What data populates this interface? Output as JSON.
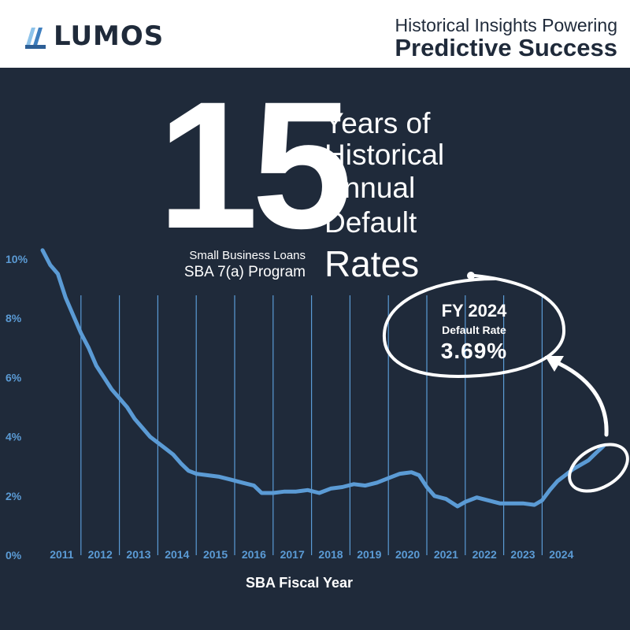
{
  "header": {
    "logo_text": "LUMOS",
    "tagline_line1": "Historical Insights Powering",
    "tagline_line2": "Predictive Success"
  },
  "headline": {
    "number": "15",
    "lines": [
      "Years of",
      "Historical",
      "Annual",
      "Default",
      "Rates"
    ],
    "subtitle_line1": "Small Business Loans",
    "subtitle_line2": "SBA 7(a) Program"
  },
  "callout": {
    "title": "FY 2024",
    "label": "Default Rate",
    "value": "3.69%"
  },
  "colors": {
    "background": "#1f2a3a",
    "header_bg": "#ffffff",
    "line": "#5b9bd5",
    "axis_text": "#5b9bd5",
    "white": "#ffffff"
  },
  "chart_data": {
    "type": "line",
    "title": "",
    "xlabel": "SBA Fiscal Year",
    "ylabel": "",
    "categories": [
      "2011",
      "2012",
      "2013",
      "2014",
      "2015",
      "2016",
      "2017",
      "2018",
      "2019",
      "2020",
      "2021",
      "2022",
      "2023",
      "2024"
    ],
    "y_ticks": [
      "0%",
      "2%",
      "4%",
      "6%",
      "8%",
      "10%"
    ],
    "ylim": [
      0,
      10.5
    ],
    "xlim": [
      2010.0,
      2025.0
    ],
    "grid": "vertical lines between fiscal years",
    "series": [
      {
        "name": "",
        "points": [
          [
            2010.0,
            10.3
          ],
          [
            2010.2,
            9.8
          ],
          [
            2010.4,
            9.5
          ],
          [
            2010.6,
            8.7
          ],
          [
            2010.8,
            8.1
          ],
          [
            2011.0,
            7.5
          ],
          [
            2011.2,
            7.0
          ],
          [
            2011.4,
            6.4
          ],
          [
            2011.6,
            6.0
          ],
          [
            2011.8,
            5.6
          ],
          [
            2012.0,
            5.3
          ],
          [
            2012.2,
            5.0
          ],
          [
            2012.4,
            4.6
          ],
          [
            2012.6,
            4.3
          ],
          [
            2012.8,
            4.0
          ],
          [
            2013.0,
            3.8
          ],
          [
            2013.2,
            3.6
          ],
          [
            2013.4,
            3.4
          ],
          [
            2013.6,
            3.1
          ],
          [
            2013.8,
            2.85
          ],
          [
            2014.0,
            2.75
          ],
          [
            2014.3,
            2.7
          ],
          [
            2014.6,
            2.65
          ],
          [
            2014.9,
            2.55
          ],
          [
            2015.2,
            2.45
          ],
          [
            2015.5,
            2.35
          ],
          [
            2015.7,
            2.1
          ],
          [
            2016.0,
            2.1
          ],
          [
            2016.3,
            2.15
          ],
          [
            2016.6,
            2.15
          ],
          [
            2016.9,
            2.2
          ],
          [
            2017.2,
            2.1
          ],
          [
            2017.5,
            2.25
          ],
          [
            2017.8,
            2.3
          ],
          [
            2018.1,
            2.4
          ],
          [
            2018.4,
            2.35
          ],
          [
            2018.7,
            2.45
          ],
          [
            2019.0,
            2.6
          ],
          [
            2019.3,
            2.75
          ],
          [
            2019.6,
            2.8
          ],
          [
            2019.8,
            2.7
          ],
          [
            2020.0,
            2.3
          ],
          [
            2020.2,
            2.0
          ],
          [
            2020.5,
            1.9
          ],
          [
            2020.8,
            1.65
          ],
          [
            2021.0,
            1.8
          ],
          [
            2021.3,
            1.95
          ],
          [
            2021.6,
            1.85
          ],
          [
            2021.9,
            1.75
          ],
          [
            2022.2,
            1.75
          ],
          [
            2022.5,
            1.75
          ],
          [
            2022.8,
            1.7
          ],
          [
            2023.0,
            1.85
          ],
          [
            2023.2,
            2.2
          ],
          [
            2023.4,
            2.5
          ],
          [
            2023.6,
            2.7
          ],
          [
            2023.8,
            2.9
          ],
          [
            2024.0,
            3.05
          ],
          [
            2024.2,
            3.2
          ],
          [
            2024.4,
            3.45
          ],
          [
            2024.6,
            3.69
          ]
        ]
      }
    ]
  }
}
